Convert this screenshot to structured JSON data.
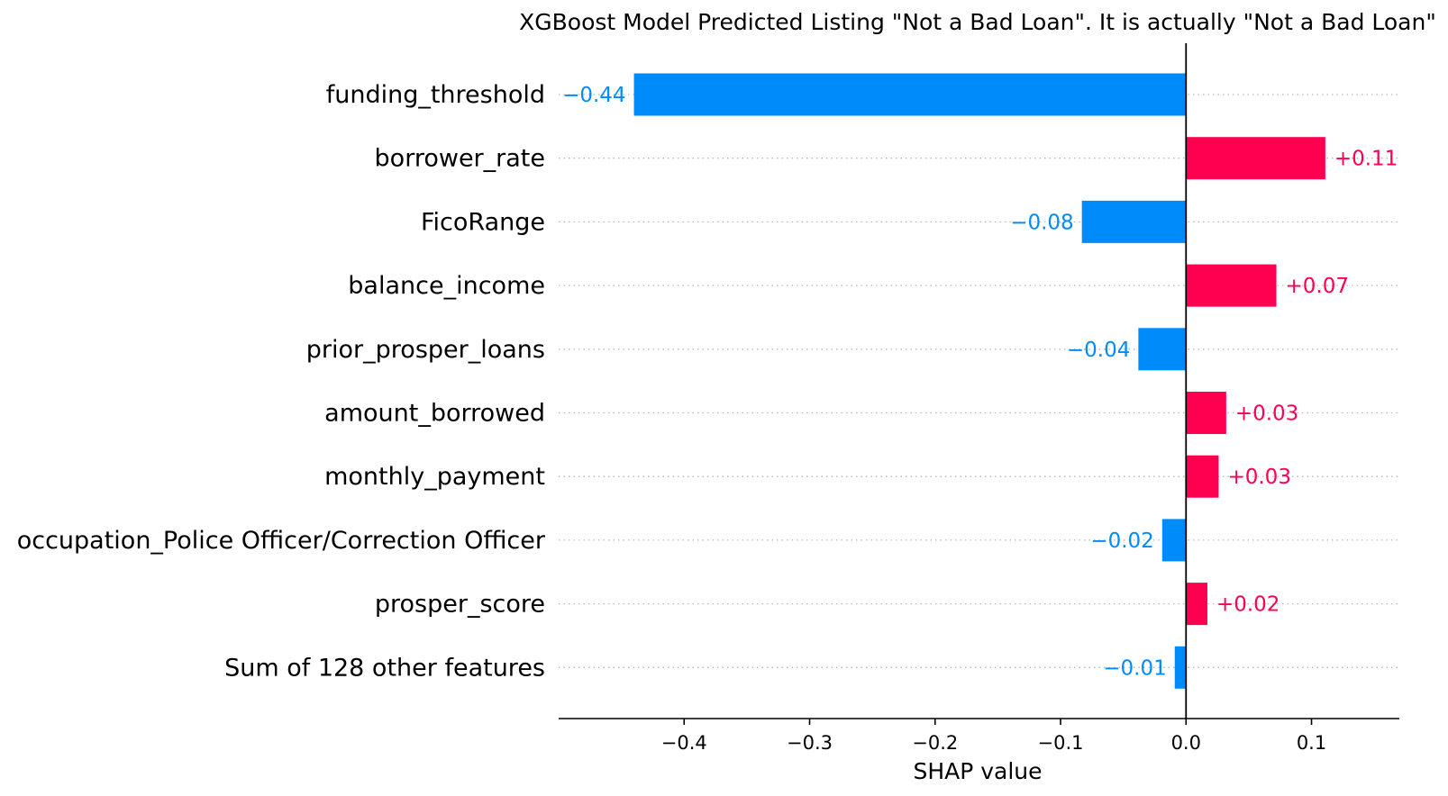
{
  "chart_data": {
    "type": "bar",
    "orientation": "horizontal",
    "title": "XGBoost Model Predicted Listing \"Not a Bad Loan\". It is actually \"Not a Bad Loan\"",
    "xlabel": "SHAP value",
    "ylabel": "",
    "categories": [
      "funding_threshold",
      "borrower_rate",
      "FicoRange",
      "balance_income",
      "prior_prosper_loans",
      "amount_borrowed",
      "monthly_payment",
      "occupation_Police Officer/Correction Officer",
      "prosper_score",
      "Sum of 128 other features"
    ],
    "values": [
      -0.44,
      0.111,
      -0.083,
      0.072,
      -0.038,
      0.032,
      0.026,
      -0.019,
      0.017,
      -0.009
    ],
    "value_labels": [
      "−0.44",
      "+0.11",
      "−0.08",
      "+0.07",
      "−0.04",
      "+0.03",
      "+0.03",
      "−0.02",
      "+0.02",
      "−0.01"
    ],
    "xlim": [
      -0.5,
      0.17
    ],
    "xticks": [
      -0.4,
      -0.3,
      -0.2,
      -0.1,
      0.0,
      0.1
    ],
    "xtick_labels": [
      "−0.4",
      "−0.3",
      "−0.2",
      "−0.1",
      "0.0",
      "0.1"
    ],
    "grid": true,
    "legend": "none",
    "colors": {
      "positive": "#ff0051",
      "negative": "#008bfb",
      "axis": "#000000",
      "grid": "#b9b9b9"
    }
  }
}
